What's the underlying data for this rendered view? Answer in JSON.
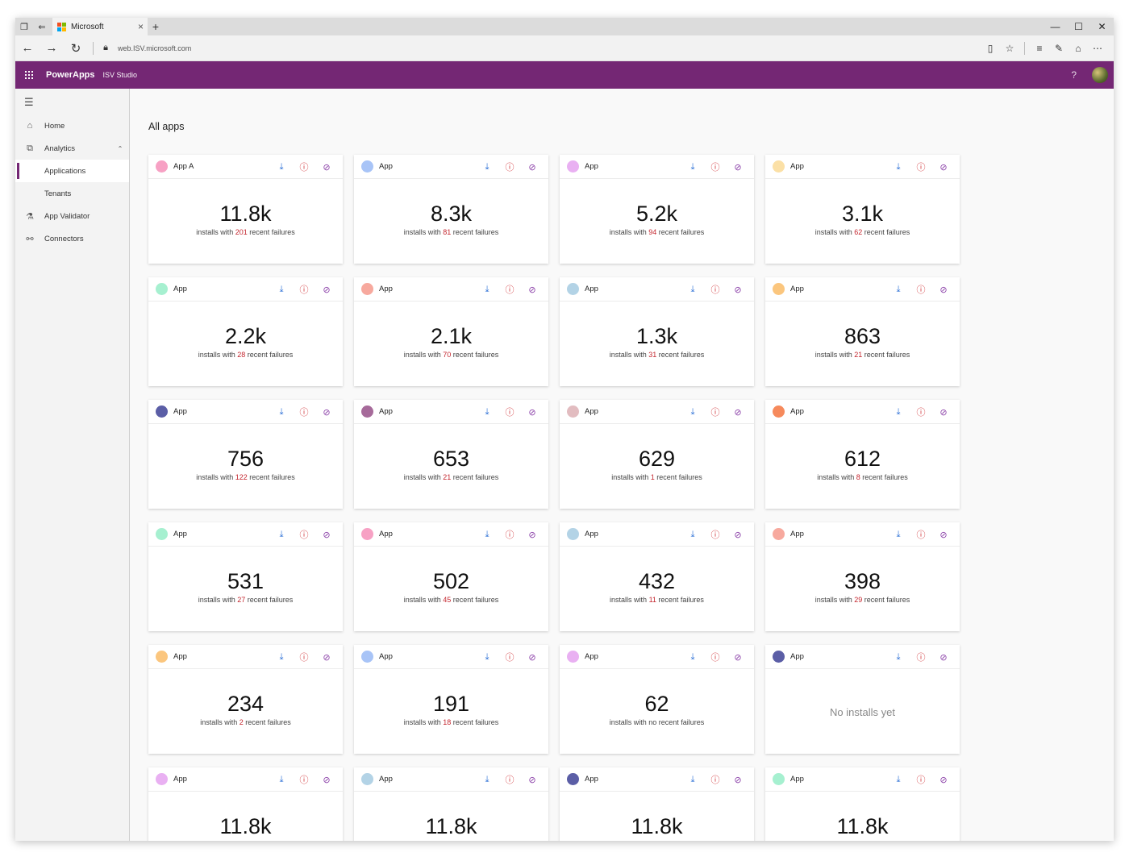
{
  "browser": {
    "tab_title": "Microsoft",
    "url": "web.ISV.microsoft.com"
  },
  "header": {
    "brand": "PowerApps",
    "product": "ISV Studio",
    "help": "?"
  },
  "sidebar": {
    "items": [
      {
        "label": "Home",
        "icon": "home-icon",
        "glyph": "⌂"
      },
      {
        "label": "Analytics",
        "icon": "analytics-icon",
        "glyph": "⧉"
      },
      {
        "label": "Applications"
      },
      {
        "label": "Tenants"
      },
      {
        "label": "App Validator",
        "icon": "validator-icon",
        "glyph": "⚗"
      },
      {
        "label": "Connectors",
        "icon": "connectors-icon",
        "glyph": "⚯"
      }
    ]
  },
  "main": {
    "title": "All apps",
    "cards": [
      {
        "name": "App A",
        "color": "#f7a1c4",
        "installs": "11.8k",
        "prefix": "installs with ",
        "failures": "201",
        "suffix": " recent failures"
      },
      {
        "name": "App",
        "color": "#a8c4f7",
        "installs": "8.3k",
        "prefix": "installs with ",
        "failures": "81",
        "suffix": " recent failures"
      },
      {
        "name": "App",
        "color": "#e9b0f2",
        "installs": "5.2k",
        "prefix": "installs with ",
        "failures": "94",
        "suffix": " recent failures"
      },
      {
        "name": "App",
        "color": "#fbe0a6",
        "installs": "3.1k",
        "prefix": "installs with ",
        "failures": "62",
        "suffix": " recent failures"
      },
      {
        "name": "App",
        "color": "#a6f0d0",
        "installs": "2.2k",
        "prefix": "installs with ",
        "failures": "28",
        "suffix": " recent failures"
      },
      {
        "name": "App",
        "color": "#f7a99e",
        "installs": "2.1k",
        "prefix": "installs with ",
        "failures": "70",
        "suffix": " recent failures"
      },
      {
        "name": "App",
        "color": "#b3d3e6",
        "installs": "1.3k",
        "prefix": "installs with ",
        "failures": "31",
        "suffix": " recent failures"
      },
      {
        "name": "App",
        "color": "#fbc67e",
        "installs": "863",
        "prefix": "installs with ",
        "failures": "21",
        "suffix": " recent failures"
      },
      {
        "name": "App",
        "color": "#5b5ea6",
        "installs": "756",
        "prefix": "installs with ",
        "failures": "122",
        "suffix": " recent failures"
      },
      {
        "name": "App",
        "color": "#a66a9a",
        "installs": "653",
        "prefix": "installs with ",
        "failures": "21",
        "suffix": " recent failures"
      },
      {
        "name": "App",
        "color": "#e2bcc0",
        "installs": "629",
        "prefix": "installs with ",
        "failures": "1",
        "suffix": " recent failures"
      },
      {
        "name": "App",
        "color": "#f68a5c",
        "installs": "612",
        "prefix": "installs with ",
        "failures": "8",
        "suffix": " recent failures"
      },
      {
        "name": "App",
        "color": "#a6f0d0",
        "installs": "531",
        "prefix": "installs with ",
        "failures": "27",
        "suffix": " recent failures"
      },
      {
        "name": "App",
        "color": "#f7a1c4",
        "installs": "502",
        "prefix": "installs with ",
        "failures": "45",
        "suffix": " recent failures"
      },
      {
        "name": "App",
        "color": "#b3d3e6",
        "installs": "432",
        "prefix": "installs with ",
        "failures": "11",
        "suffix": " recent failures"
      },
      {
        "name": "App",
        "color": "#f7a99e",
        "installs": "398",
        "prefix": "installs with ",
        "failures": "29",
        "suffix": " recent failures"
      },
      {
        "name": "App",
        "color": "#fbc67e",
        "installs": "234",
        "prefix": "installs with ",
        "failures": "2",
        "suffix": " recent failures"
      },
      {
        "name": "App",
        "color": "#a8c4f7",
        "installs": "191",
        "prefix": "installs with ",
        "failures": "18",
        "suffix": " recent failures"
      },
      {
        "name": "App",
        "color": "#e9b0f2",
        "installs": "62",
        "prefix": "installs with no recent failures",
        "failures": "",
        "suffix": ""
      },
      {
        "name": "App",
        "color": "#5b5ea6",
        "empty": "No installs yet"
      },
      {
        "name": "App",
        "color": "#e9b0f2",
        "installs": "11.8k"
      },
      {
        "name": "App",
        "color": "#b3d3e6",
        "installs": "11.8k"
      },
      {
        "name": "App",
        "color": "#5b5ea6",
        "installs": "11.8k"
      },
      {
        "name": "App",
        "color": "#a6f0d0",
        "installs": "11.8k"
      }
    ]
  }
}
